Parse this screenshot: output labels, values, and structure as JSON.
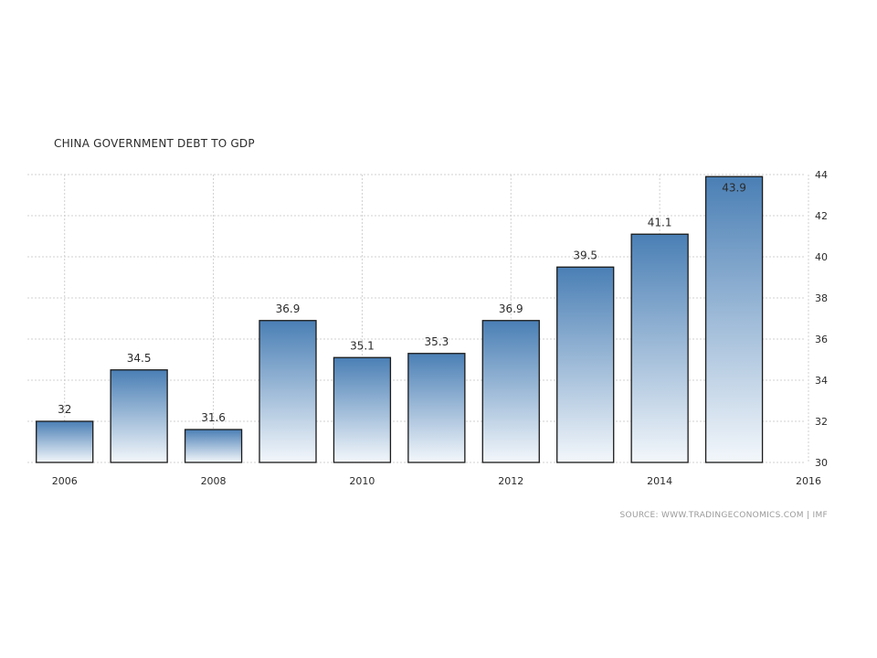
{
  "chart_data": {
    "type": "bar",
    "title": "CHINA GOVERNMENT DEBT TO GDP",
    "xlabel": "",
    "ylabel": "",
    "categories": [
      "2006",
      "2007",
      "2008",
      "2009",
      "2010",
      "2011",
      "2012",
      "2013",
      "2014",
      "2015"
    ],
    "values": [
      32,
      34.5,
      31.6,
      36.9,
      35.1,
      35.3,
      36.9,
      39.5,
      41.1,
      43.9
    ],
    "data_labels": [
      "32",
      "34.5",
      "31.6",
      "36.9",
      "35.1",
      "35.3",
      "36.9",
      "39.5",
      "41.1",
      "43.9"
    ],
    "x_tick_labels": [
      "2006",
      "2008",
      "2010",
      "2012",
      "2014",
      "2016"
    ],
    "x_range": [
      2005.5,
      2016
    ],
    "y_ticks": [
      30,
      32,
      34,
      36,
      38,
      40,
      42,
      44
    ],
    "ylim": [
      30,
      44
    ],
    "y_axis_side": "right",
    "grid": true,
    "legend": "none",
    "colors": {
      "bar_top": "#4a7fb5",
      "bar_bottom": "#f3f7fb",
      "bar_border": "#1a1a1a",
      "grid": "#d0d0d0"
    }
  },
  "source": "SOURCE: WWW.TRADINGECONOMICS.COM | IMF"
}
